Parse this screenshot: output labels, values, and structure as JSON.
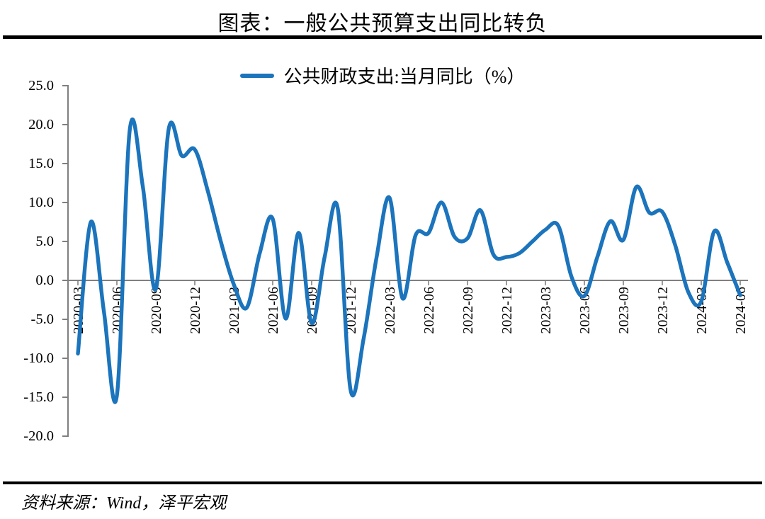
{
  "header": {
    "title": "图表：一般公共预算支出同比转负"
  },
  "legend": {
    "label": "公共财政支出:当月同比（%）"
  },
  "footer": {
    "source": "资料来源：Wind，泽平宏观"
  },
  "colors": {
    "line": "#1B74BC",
    "axis": "#7F7F7F",
    "zero_line": "#808080",
    "text": "#000000",
    "rule": "#000000"
  },
  "chart_data": {
    "type": "line",
    "title": "图表：一般公共预算支出同比转负",
    "legend_entries": [
      "公共财政支出:当月同比（%）"
    ],
    "legend_position": "top-center",
    "smooth": true,
    "grid": false,
    "zero_baseline": true,
    "ylim": [
      -20.0,
      25.0
    ],
    "ytick_interval": 5.0,
    "ytick_labels": [
      "25.0",
      "20.0",
      "15.0",
      "10.0",
      "5.0",
      "0.0",
      "-5.0",
      "-10.0",
      "-15.0",
      "-20.0"
    ],
    "x": [
      "2020-03",
      "2020-04",
      "2020-05",
      "2020-06",
      "2020-07",
      "2020-08",
      "2020-09",
      "2020-10",
      "2020-11",
      "2020-12",
      "2021-01",
      "2021-02",
      "2021-03",
      "2021-04",
      "2021-05",
      "2021-06",
      "2021-07",
      "2021-08",
      "2021-09",
      "2021-10",
      "2021-11",
      "2021-12",
      "2022-01",
      "2022-02",
      "2022-03",
      "2022-04",
      "2022-05",
      "2022-06",
      "2022-07",
      "2022-08",
      "2022-09",
      "2022-10",
      "2022-11",
      "2022-12",
      "2023-01",
      "2023-02",
      "2023-03",
      "2023-04",
      "2023-05",
      "2023-06",
      "2023-07",
      "2023-08",
      "2023-09",
      "2023-10",
      "2023-11",
      "2023-12",
      "2024-01",
      "2024-02",
      "2024-03",
      "2024-04",
      "2024-05",
      "2024-06"
    ],
    "x_tick_labels": [
      "2020-03",
      "2020-06",
      "2020-09",
      "2020-12",
      "2021-03",
      "2021-06",
      "2021-09",
      "2021-12",
      "2022-03",
      "2022-06",
      "2022-09",
      "2022-12",
      "2023-03",
      "2023-06",
      "2023-09",
      "2023-12",
      "2024-03",
      "2024-06"
    ],
    "series": [
      {
        "name": "公共财政支出:当月同比（%）",
        "values": [
          -9.4,
          7.5,
          -4.0,
          -14.8,
          19.4,
          12.0,
          -1.1,
          19.5,
          16.0,
          16.8,
          11.5,
          5.0,
          -0.5,
          -3.5,
          3.5,
          7.9,
          -4.9,
          6.1,
          -5.5,
          3.0,
          9.3,
          -14.1,
          -7.5,
          3.0,
          10.6,
          -2.3,
          5.8,
          6.1,
          10.0,
          5.6,
          5.4,
          9.0,
          3.3,
          3.0,
          3.5,
          5.0,
          6.5,
          7.0,
          0.5,
          -2.0,
          3.0,
          7.6,
          5.2,
          12.0,
          8.7,
          8.8,
          4.5,
          -1.5,
          -2.7,
          6.3,
          2.3,
          -1.9
        ]
      }
    ]
  }
}
